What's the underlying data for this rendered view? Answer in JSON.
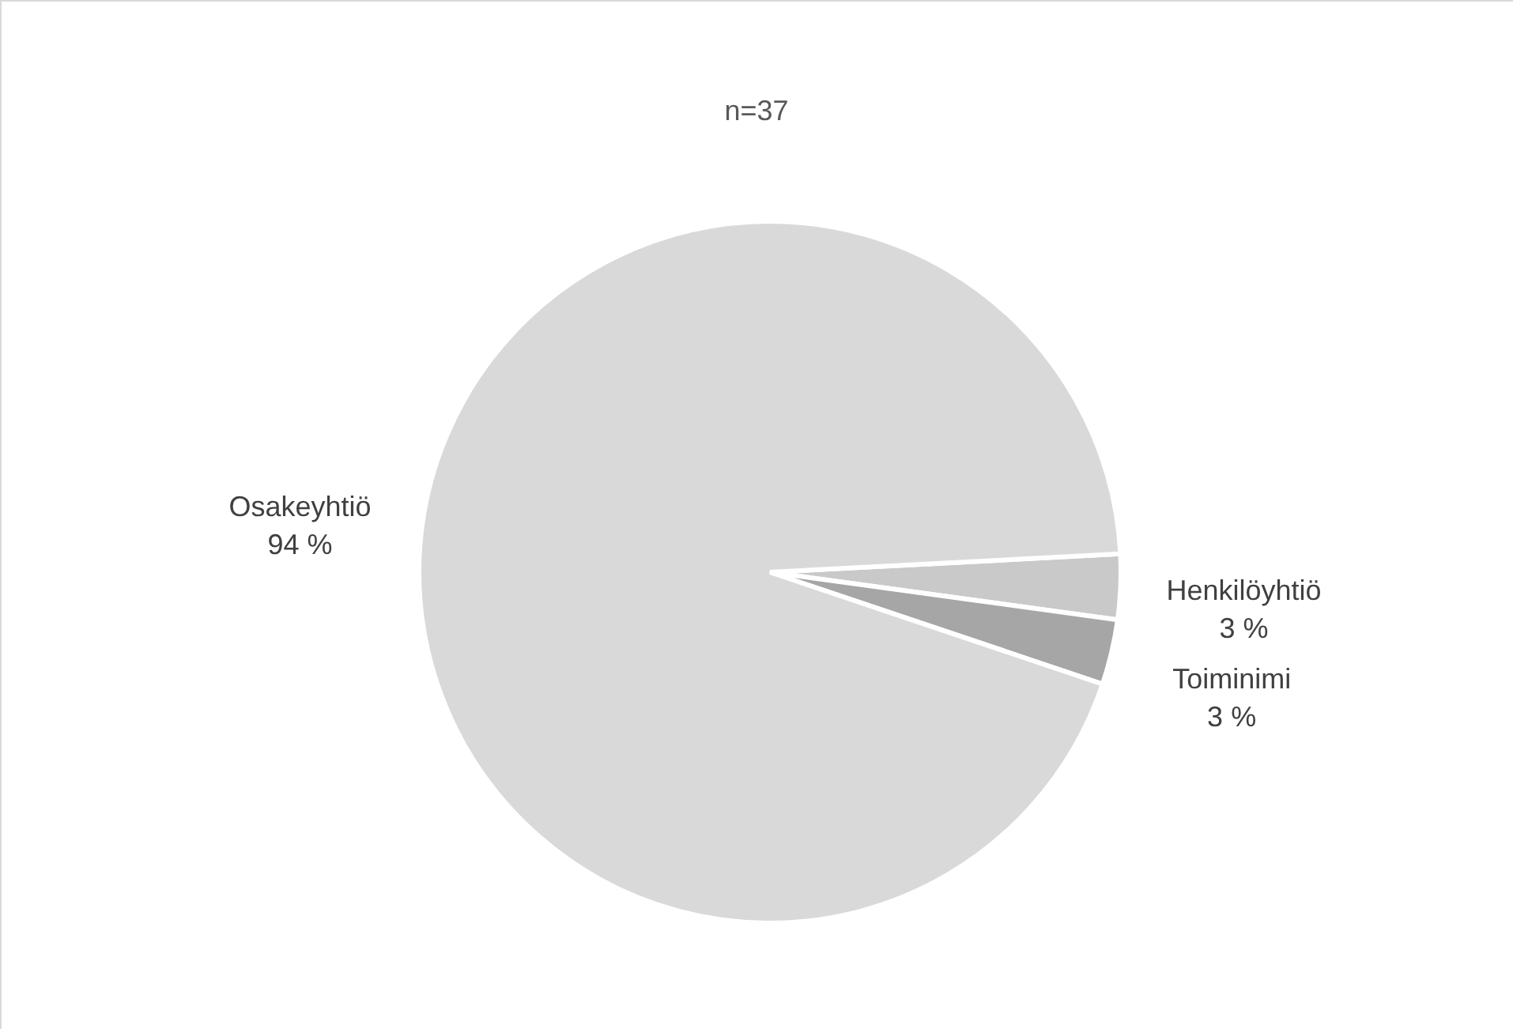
{
  "chart_data": {
    "type": "pie",
    "title": "n=37",
    "categories": [
      "Henkilöyhtiö",
      "Toiminimi",
      "Osakeyhtiö"
    ],
    "values": [
      3,
      3,
      94
    ],
    "colors": [
      "#c9c9c9",
      "#a6a6a6",
      "#d9d9d9"
    ],
    "value_labels": [
      "3 %",
      "3 %",
      "94 %"
    ],
    "legend": false
  }
}
